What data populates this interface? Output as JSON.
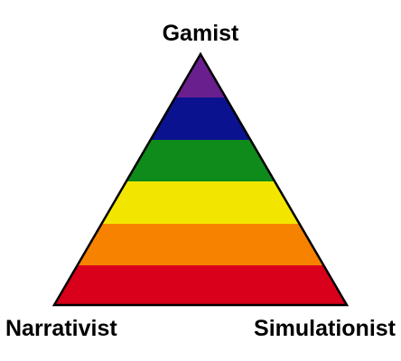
{
  "labels": {
    "top": "Gamist",
    "bottom_left": "Narrativist",
    "bottom_right": "Simulationist"
  },
  "bands": [
    {
      "color": "#6a1f8e"
    },
    {
      "color": "#0b1290"
    },
    {
      "color": "#0e8b1a"
    },
    {
      "color": "#f2e600"
    },
    {
      "color": "#f68200"
    },
    {
      "color": "#d9001b"
    }
  ],
  "outline_color": "#000000"
}
